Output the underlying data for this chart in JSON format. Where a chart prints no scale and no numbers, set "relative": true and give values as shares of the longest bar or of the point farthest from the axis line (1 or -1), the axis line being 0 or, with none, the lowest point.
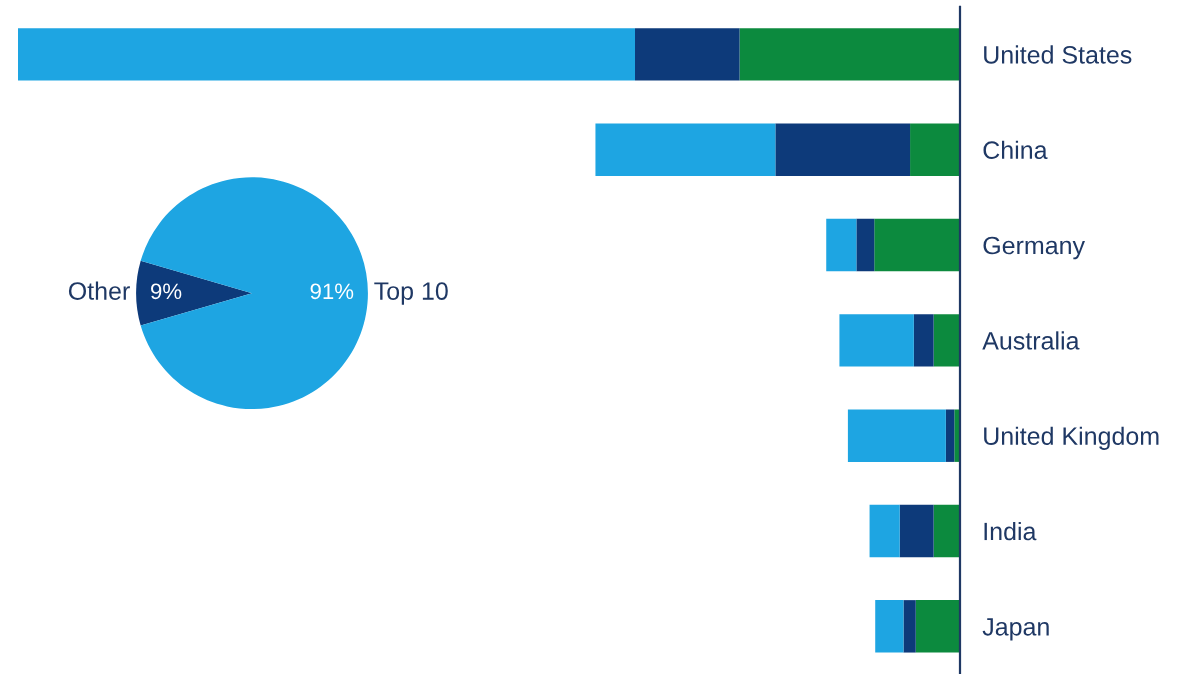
{
  "chart_data": [
    {
      "type": "bar",
      "orientation": "horizontal",
      "stacked": true,
      "relative": true,
      "categories": [
        "United States",
        "China",
        "Germany",
        "Australia",
        "United Kingdom",
        "India",
        "Japan"
      ],
      "series": [
        {
          "color": "#0c8a3e",
          "values": [
            0.234,
            0.053,
            0.091,
            0.028,
            0.006,
            0.028,
            0.047
          ]
        },
        {
          "color": "#0d3a7a",
          "values": [
            0.111,
            0.143,
            0.019,
            0.021,
            0.009,
            0.036,
            0.013
          ]
        },
        {
          "color": "#1ea5e2",
          "values": [
            0.655,
            0.191,
            0.032,
            0.079,
            0.104,
            0.032,
            0.03
          ]
        }
      ],
      "grid": false,
      "legend": false
    },
    {
      "type": "pie",
      "categories": [
        "Other",
        "Top 10"
      ],
      "values": [
        9,
        91
      ],
      "colors": [
        "#0d3a7a",
        "#1ea5e2"
      ],
      "value_labels": [
        "9%",
        "91%"
      ]
    }
  ]
}
